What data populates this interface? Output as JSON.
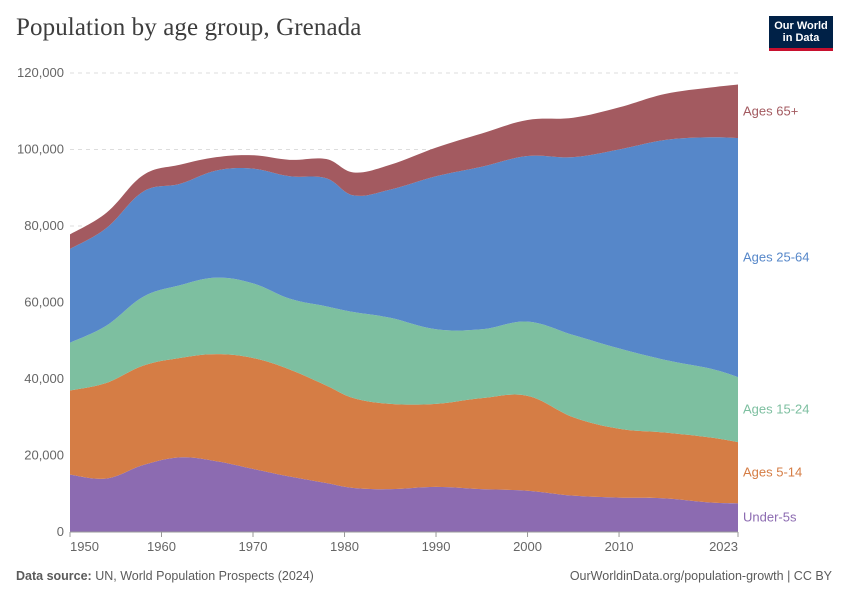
{
  "header": {
    "title": "Population by age group, Grenada",
    "logo_line1": "Our World",
    "logo_line2": "in Data"
  },
  "footer": {
    "source_label": "Data source:",
    "source_text": "UN, World Population Prospects (2024)",
    "url_text": "OurWorldinData.org/population-growth | CC BY"
  },
  "chart_data": {
    "type": "area",
    "stacked": true,
    "title": "Population by age group, Grenada",
    "xlabel": "",
    "ylabel": "",
    "xlim": [
      1950,
      2023
    ],
    "ylim": [
      0,
      120000
    ],
    "y_ticks": [
      0,
      20000,
      40000,
      60000,
      80000,
      100000,
      120000
    ],
    "y_tick_labels": [
      "0",
      "20,000",
      "40,000",
      "60,000",
      "80,000",
      "100,000",
      "120,000"
    ],
    "x_ticks": [
      1950,
      1960,
      1970,
      1980,
      1990,
      2000,
      2010,
      2023
    ],
    "x_tick_labels": [
      "1950",
      "1960",
      "1970",
      "1980",
      "1990",
      "2000",
      "2010",
      "2023"
    ],
    "grid": "horizontal dashed",
    "x": [
      1950,
      1954,
      1958,
      1962,
      1966,
      1970,
      1974,
      1978,
      1981,
      1985,
      1990,
      1995,
      2000,
      2005,
      2010,
      2015,
      2020,
      2023
    ],
    "series": [
      {
        "name": "Under-5s",
        "color": "#8c6bb1",
        "values": [
          15000,
          14000,
          17500,
          19500,
          18500,
          16500,
          14500,
          12800,
          11500,
          11200,
          11800,
          11200,
          10800,
          9500,
          9000,
          8800,
          7700,
          7500
        ]
      },
      {
        "name": "Ages 5-14",
        "color": "#d57d45",
        "values": [
          22000,
          25000,
          26000,
          26000,
          28000,
          29000,
          28000,
          25500,
          23500,
          22300,
          21700,
          23800,
          24800,
          20500,
          18000,
          17200,
          17000,
          16000
        ]
      },
      {
        "name": "Ages 15-24",
        "color": "#7dbfa0",
        "values": [
          12500,
          15000,
          18000,
          19000,
          20000,
          19500,
          18500,
          20700,
          22500,
          22500,
          19500,
          18000,
          19400,
          21500,
          21000,
          19000,
          18000,
          17000
        ]
      },
      {
        "name": "Ages 25-64",
        "color": "#5687c9",
        "values": [
          24500,
          25500,
          27500,
          26500,
          28000,
          30000,
          32000,
          33500,
          30500,
          33500,
          40000,
          42500,
          43300,
          46500,
          52000,
          57500,
          60500,
          62500
        ]
      },
      {
        "name": "Ages 65+",
        "color": "#a35a60",
        "values": [
          3800,
          4000,
          4300,
          5000,
          3500,
          3500,
          4300,
          5000,
          6000,
          6500,
          7500,
          8700,
          9400,
          10300,
          11000,
          12000,
          13000,
          14000
        ]
      }
    ]
  }
}
